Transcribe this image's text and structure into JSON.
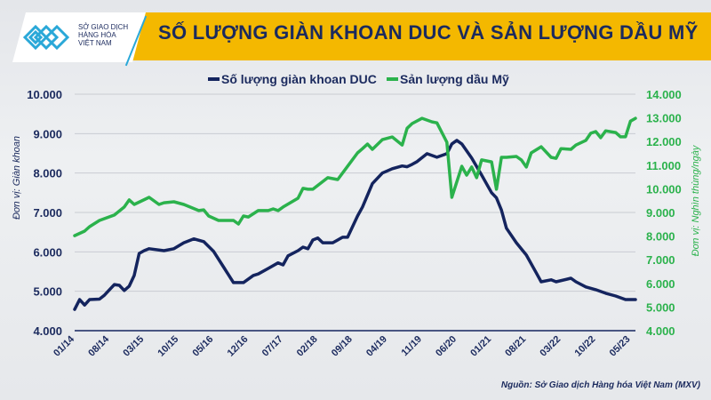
{
  "header": {
    "title": "SỐ LƯỢNG GIÀN KHOAN DUC VÀ SẢN LƯỢNG DẦU MỸ",
    "logo_text": [
      "SỞ GIAO DỊCH",
      "HÀNG HÓA",
      "VIỆT NAM"
    ]
  },
  "source": "Nguồn: Sở Giao dịch Hàng hóa Việt Nam (MXV)",
  "colors": {
    "duc": "#14245e",
    "oil": "#2bb24c",
    "banner": "#f4b800",
    "title": "#1b2a5e"
  },
  "chart_data": {
    "type": "line",
    "title": "SỐ LƯỢNG GIÀN KHOAN DUC VÀ SẢN LƯỢNG DẦU MỸ",
    "legend_position": "top",
    "grid": true,
    "x_range": [
      "01/14",
      "06/23"
    ],
    "x_ticks": [
      "01/14",
      "08/14",
      "03/15",
      "10/15",
      "05/16",
      "12/16",
      "07/17",
      "02/18",
      "09/18",
      "04/19",
      "11/19",
      "06/20",
      "01/21",
      "08/21",
      "03/22",
      "10/22",
      "05/23"
    ],
    "y_left": {
      "label": "Đơn vị: Giàn khoan",
      "range": [
        4000,
        10000
      ],
      "ticks": [
        "4.000",
        "5.000",
        "6.000",
        "7.000",
        "8.000",
        "9.000",
        "10.000"
      ]
    },
    "y_right": {
      "label": "Đơn vị: Nghìn thùng/ngày",
      "range": [
        4000,
        14000
      ],
      "ticks": [
        "4.000",
        "5.000",
        "6.000",
        "7.000",
        "8.000",
        "9.000",
        "10.000",
        "11.000",
        "12.000",
        "13.000",
        "14.000"
      ]
    },
    "series": [
      {
        "name": "Số lượng giàn khoan DUC",
        "axis": "left",
        "color": "#14245e",
        "points": [
          [
            "01/14",
            4540
          ],
          [
            "02/14",
            4790
          ],
          [
            "03/14",
            4650
          ],
          [
            "04/14",
            4790
          ],
          [
            "06/14",
            4800
          ],
          [
            "07/14",
            4900
          ],
          [
            "09/14",
            5170
          ],
          [
            "10/14",
            5150
          ],
          [
            "11/14",
            5020
          ],
          [
            "12/14",
            5130
          ],
          [
            "01/15",
            5400
          ],
          [
            "02/15",
            5960
          ],
          [
            "03/15",
            6030
          ],
          [
            "04/15",
            6080
          ],
          [
            "07/15",
            6030
          ],
          [
            "09/15",
            6080
          ],
          [
            "11/15",
            6230
          ],
          [
            "01/16",
            6330
          ],
          [
            "03/16",
            6260
          ],
          [
            "05/16",
            6010
          ],
          [
            "09/16",
            5220
          ],
          [
            "11/16",
            5220
          ],
          [
            "01/17",
            5400
          ],
          [
            "02/17",
            5440
          ],
          [
            "04/17",
            5580
          ],
          [
            "06/17",
            5720
          ],
          [
            "07/17",
            5670
          ],
          [
            "08/17",
            5900
          ],
          [
            "10/17",
            6030
          ],
          [
            "11/17",
            6120
          ],
          [
            "12/17",
            6080
          ],
          [
            "01/18",
            6300
          ],
          [
            "02/18",
            6350
          ],
          [
            "03/18",
            6230
          ],
          [
            "05/18",
            6230
          ],
          [
            "07/18",
            6370
          ],
          [
            "08/18",
            6370
          ],
          [
            "10/18",
            6910
          ],
          [
            "11/18",
            7140
          ],
          [
            "01/19",
            7730
          ],
          [
            "03/19",
            8000
          ],
          [
            "05/19",
            8110
          ],
          [
            "07/19",
            8180
          ],
          [
            "08/19",
            8160
          ],
          [
            "09/19",
            8220
          ],
          [
            "10/19",
            8290
          ],
          [
            "12/19",
            8490
          ],
          [
            "02/20",
            8400
          ],
          [
            "04/20",
            8490
          ],
          [
            "05/20",
            8740
          ],
          [
            "06/20",
            8830
          ],
          [
            "07/20",
            8740
          ],
          [
            "09/20",
            8380
          ],
          [
            "11/20",
            7950
          ],
          [
            "01/21",
            7500
          ],
          [
            "02/21",
            7370
          ],
          [
            "03/21",
            7060
          ],
          [
            "04/21",
            6600
          ],
          [
            "06/21",
            6230
          ],
          [
            "08/21",
            5920
          ],
          [
            "10/21",
            5470
          ],
          [
            "11/21",
            5240
          ],
          [
            "01/22",
            5290
          ],
          [
            "02/22",
            5240
          ],
          [
            "05/22",
            5330
          ],
          [
            "06/22",
            5240
          ],
          [
            "08/22",
            5110
          ],
          [
            "10/22",
            5040
          ],
          [
            "12/22",
            4950
          ],
          [
            "02/23",
            4880
          ],
          [
            "04/23",
            4790
          ],
          [
            "06/23",
            4790
          ]
        ]
      },
      {
        "name": "Sản lượng dầu Mỹ",
        "axis": "right",
        "color": "#2bb24c",
        "points": [
          [
            "01/14",
            8020
          ],
          [
            "03/14",
            8210
          ],
          [
            "04/14",
            8400
          ],
          [
            "06/14",
            8660
          ],
          [
            "09/14",
            8890
          ],
          [
            "11/14",
            9230
          ],
          [
            "12/14",
            9530
          ],
          [
            "01/15",
            9340
          ],
          [
            "04/15",
            9640
          ],
          [
            "06/15",
            9340
          ],
          [
            "07/15",
            9410
          ],
          [
            "09/15",
            9450
          ],
          [
            "11/15",
            9340
          ],
          [
            "02/16",
            9080
          ],
          [
            "03/16",
            9110
          ],
          [
            "04/16",
            8850
          ],
          [
            "06/16",
            8660
          ],
          [
            "09/16",
            8660
          ],
          [
            "10/16",
            8510
          ],
          [
            "11/16",
            8850
          ],
          [
            "12/16",
            8810
          ],
          [
            "02/17",
            9080
          ],
          [
            "04/17",
            9080
          ],
          [
            "05/17",
            9150
          ],
          [
            "06/17",
            9080
          ],
          [
            "07/17",
            9230
          ],
          [
            "10/17",
            9600
          ],
          [
            "11/17",
            10020
          ],
          [
            "12/17",
            9980
          ],
          [
            "01/18",
            9980
          ],
          [
            "04/18",
            10470
          ],
          [
            "06/18",
            10390
          ],
          [
            "08/18",
            10950
          ],
          [
            "10/18",
            11520
          ],
          [
            "11/18",
            11700
          ],
          [
            "12/18",
            11890
          ],
          [
            "01/19",
            11670
          ],
          [
            "03/19",
            12080
          ],
          [
            "05/19",
            12190
          ],
          [
            "07/19",
            11850
          ],
          [
            "08/19",
            12560
          ],
          [
            "09/19",
            12760
          ],
          [
            "11/19",
            12980
          ],
          [
            "01/20",
            12830
          ],
          [
            "02/20",
            12790
          ],
          [
            "04/20",
            11970
          ],
          [
            "05/20",
            9640
          ],
          [
            "07/20",
            10950
          ],
          [
            "08/20",
            10580
          ],
          [
            "09/20",
            10920
          ],
          [
            "10/20",
            10470
          ],
          [
            "11/20",
            11220
          ],
          [
            "01/21",
            11140
          ],
          [
            "02/21",
            9980
          ],
          [
            "03/21",
            11330
          ],
          [
            "04/21",
            11330
          ],
          [
            "06/21",
            11370
          ],
          [
            "07/21",
            11220
          ],
          [
            "08/21",
            10920
          ],
          [
            "09/21",
            11520
          ],
          [
            "11/21",
            11780
          ],
          [
            "01/22",
            11330
          ],
          [
            "02/22",
            11290
          ],
          [
            "03/22",
            11700
          ],
          [
            "05/22",
            11670
          ],
          [
            "06/22",
            11850
          ],
          [
            "08/22",
            12050
          ],
          [
            "09/22",
            12350
          ],
          [
            "10/22",
            12420
          ],
          [
            "11/22",
            12160
          ],
          [
            "12/22",
            12450
          ],
          [
            "02/23",
            12380
          ],
          [
            "03/23",
            12200
          ],
          [
            "04/23",
            12200
          ],
          [
            "05/23",
            12860
          ],
          [
            "06/23",
            12980
          ]
        ]
      }
    ]
  }
}
